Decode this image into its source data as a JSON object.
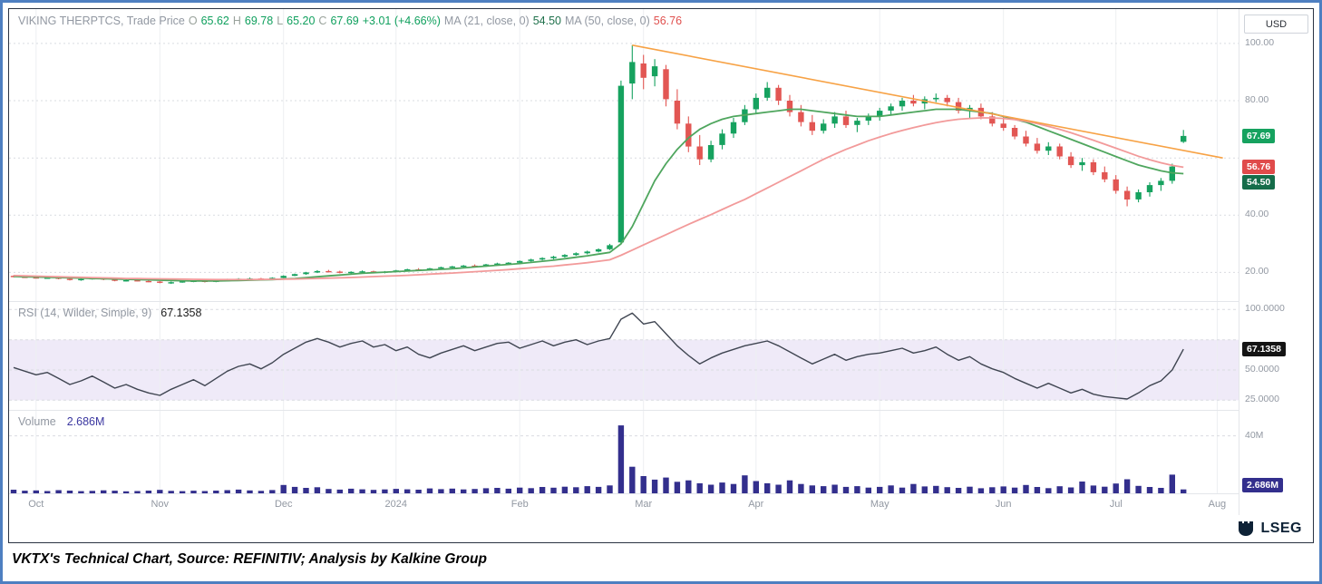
{
  "window": {
    "currency_button": "USD",
    "brand": "LSEG",
    "caption": "VKTX's Technical Chart, Source: REFINITIV; Analysis by Kalkine Group"
  },
  "price_panel": {
    "header": {
      "title": "VIKING THERPTCS, Trade Price",
      "o_label": "O",
      "o_value": "65.62",
      "h_label": "H",
      "h_value": "69.78",
      "l_label": "L",
      "l_value": "65.20",
      "c_label": "C",
      "c_value": "67.69",
      "change": "+3.01 (+4.66%)",
      "ma21_label": "MA (21, close, 0)",
      "ma21_value": "54.50",
      "ma50_label": "MA (50, close, 0)",
      "ma50_value": "56.76"
    }
  },
  "rsi_panel": {
    "label": "RSI (14, Wilder, Simple, 9)",
    "value": "67.1358"
  },
  "volume_panel": {
    "label": "Volume",
    "value": "2.686M"
  },
  "badges": {
    "last_price": "67.69",
    "ma50": "56.76",
    "ma21": "54.50",
    "rsi": "67.1358",
    "volume": "2.686M"
  },
  "colors": {
    "up": "#16a25f",
    "down": "#e25653",
    "ma21": "#4fa65e",
    "ma50": "#f29a9a",
    "trend": "#f7a245",
    "rsi": "#3f4551",
    "volume": "#332f8d",
    "band": "#efeaf8",
    "grid_v": "#edeff2",
    "grid_h": "#d9dce1",
    "sep": "#e4e6ea",
    "badge_price": "#16a25f",
    "badge_ma50": "#e04b4b",
    "badge_ma21": "#156d4a",
    "badge_rsi": "#141414",
    "badge_volume": "#332f8d",
    "frame_blue": "#4e7fc1",
    "lseg_navy": "#0e2236"
  },
  "chart_data": [
    {
      "type": "candlestick",
      "name": "VIKING THERPTCS, Trade Price",
      "x_total_units": 108.5,
      "x_months": [
        {
          "label": "Oct",
          "i": 2
        },
        {
          "label": "Nov",
          "i": 13
        },
        {
          "label": "Dec",
          "i": 24
        },
        {
          "label": "2024",
          "i": 34
        },
        {
          "label": "Feb",
          "i": 45
        },
        {
          "label": "Mar",
          "i": 56
        },
        {
          "label": "Apr",
          "i": 66
        },
        {
          "label": "May",
          "i": 77
        },
        {
          "label": "Jun",
          "i": 88
        },
        {
          "label": "Jul",
          "i": 98
        },
        {
          "label": "Aug",
          "i": 107
        }
      ],
      "ylim": [
        10,
        112
      ],
      "yticks": [
        {
          "v": 100,
          "label": "100.00"
        },
        {
          "v": 80,
          "label": "80.00"
        },
        {
          "v": 60,
          "label": ""
        },
        {
          "v": 40,
          "label": "40.00"
        },
        {
          "v": 20,
          "label": "20.00"
        }
      ],
      "last_close": 67.69,
      "ohlc": [
        [
          18.8,
          19.0,
          18.3,
          18.5
        ],
        [
          18.5,
          18.7,
          18.1,
          18.3
        ],
        [
          18.3,
          18.6,
          17.9,
          18.1
        ],
        [
          18.1,
          18.4,
          17.8,
          18.2
        ],
        [
          18.2,
          18.5,
          17.6,
          17.8
        ],
        [
          17.8,
          18.0,
          17.2,
          17.4
        ],
        [
          17.4,
          17.9,
          17.1,
          17.7
        ],
        [
          17.7,
          18.2,
          17.5,
          18.0
        ],
        [
          18.0,
          18.1,
          17.3,
          17.5
        ],
        [
          17.5,
          17.8,
          16.9,
          17.1
        ],
        [
          17.1,
          17.5,
          16.8,
          17.3
        ],
        [
          17.3,
          17.6,
          16.9,
          17.0
        ],
        [
          17.0,
          17.4,
          16.6,
          16.8
        ],
        [
          16.8,
          17.0,
          16.2,
          16.4
        ],
        [
          16.4,
          16.8,
          16.0,
          16.6
        ],
        [
          16.6,
          17.1,
          16.4,
          16.9
        ],
        [
          16.9,
          17.3,
          16.6,
          17.1
        ],
        [
          17.1,
          17.2,
          16.5,
          16.7
        ],
        [
          16.7,
          17.4,
          16.6,
          17.2
        ],
        [
          17.2,
          17.8,
          17.0,
          17.6
        ],
        [
          17.6,
          18.0,
          17.3,
          17.8
        ],
        [
          17.8,
          18.2,
          17.5,
          17.9
        ],
        [
          17.9,
          18.1,
          17.4,
          17.6
        ],
        [
          17.6,
          18.3,
          17.5,
          18.1
        ],
        [
          18.1,
          19.0,
          18.0,
          18.8
        ],
        [
          18.8,
          19.6,
          18.7,
          19.4
        ],
        [
          19.4,
          20.2,
          19.2,
          20.0
        ],
        [
          20.0,
          20.8,
          19.8,
          20.5
        ],
        [
          20.5,
          20.9,
          20.0,
          20.3
        ],
        [
          20.3,
          20.6,
          19.7,
          19.9
        ],
        [
          19.9,
          20.4,
          19.6,
          20.2
        ],
        [
          20.2,
          20.7,
          19.9,
          20.4
        ],
        [
          20.4,
          20.6,
          19.8,
          20.0
        ],
        [
          20.0,
          20.5,
          19.7,
          20.3
        ],
        [
          20.3,
          20.9,
          20.1,
          20.7
        ],
        [
          20.7,
          21.3,
          20.4,
          21.1
        ],
        [
          21.1,
          21.5,
          20.6,
          20.9
        ],
        [
          20.9,
          21.6,
          20.7,
          21.4
        ],
        [
          21.4,
          22.0,
          21.1,
          21.8
        ],
        [
          21.8,
          22.3,
          21.4,
          22.1
        ],
        [
          22.1,
          22.6,
          21.7,
          22.4
        ],
        [
          22.4,
          22.8,
          21.9,
          22.2
        ],
        [
          22.2,
          23.0,
          22.0,
          22.8
        ],
        [
          22.8,
          23.4,
          22.5,
          23.1
        ],
        [
          23.1,
          23.6,
          22.7,
          23.4
        ],
        [
          23.4,
          24.2,
          23.2,
          24.0
        ],
        [
          24.0,
          24.8,
          23.7,
          24.5
        ],
        [
          24.5,
          25.3,
          24.2,
          25.0
        ],
        [
          25.0,
          25.8,
          24.6,
          25.5
        ],
        [
          25.5,
          26.4,
          25.2,
          26.1
        ],
        [
          26.1,
          27.0,
          25.8,
          26.7
        ],
        [
          26.7,
          27.6,
          26.3,
          27.3
        ],
        [
          27.3,
          28.4,
          27.0,
          28.1
        ],
        [
          28.1,
          30.0,
          27.8,
          29.5
        ],
        [
          30.5,
          87.0,
          30.2,
          85.2
        ],
        [
          86.0,
          99.4,
          80.5,
          93.5
        ],
        [
          93.0,
          96.0,
          84.0,
          88.0
        ],
        [
          88.5,
          94.5,
          85.0,
          92.0
        ],
        [
          91.0,
          92.5,
          78.0,
          80.5
        ],
        [
          80.0,
          84.0,
          70.0,
          72.0
        ],
        [
          72.0,
          74.5,
          62.0,
          64.0
        ],
        [
          64.0,
          68.0,
          57.5,
          59.5
        ],
        [
          59.5,
          66.0,
          58.5,
          64.5
        ],
        [
          64.5,
          70.0,
          63.0,
          68.5
        ],
        [
          68.5,
          74.0,
          67.0,
          72.5
        ],
        [
          72.5,
          78.5,
          71.5,
          77.0
        ],
        [
          77.0,
          82.5,
          75.5,
          81.0
        ],
        [
          81.0,
          86.5,
          80.0,
          84.5
        ],
        [
          84.5,
          85.5,
          78.5,
          80.0
        ],
        [
          80.0,
          82.0,
          74.5,
          76.0
        ],
        [
          76.0,
          78.5,
          71.0,
          72.5
        ],
        [
          72.5,
          75.0,
          68.0,
          69.5
        ],
        [
          69.5,
          73.5,
          68.5,
          72.0
        ],
        [
          72.0,
          76.0,
          70.5,
          74.5
        ],
        [
          74.5,
          76.5,
          70.5,
          71.5
        ],
        [
          71.5,
          74.0,
          69.0,
          73.0
        ],
        [
          73.0,
          75.5,
          71.5,
          74.5
        ],
        [
          74.5,
          77.5,
          73.0,
          76.5
        ],
        [
          76.5,
          79.0,
          75.0,
          78.0
        ],
        [
          78.0,
          81.0,
          76.5,
          80.0
        ],
        [
          80.0,
          82.0,
          78.0,
          79.0
        ],
        [
          79.0,
          81.5,
          77.0,
          80.5
        ],
        [
          80.5,
          82.5,
          79.5,
          81.0
        ],
        [
          81.0,
          82.0,
          78.0,
          79.5
        ],
        [
          79.5,
          81.0,
          75.5,
          76.5
        ],
        [
          76.5,
          78.5,
          74.0,
          77.5
        ],
        [
          77.5,
          79.0,
          73.5,
          74.5
        ],
        [
          74.5,
          76.0,
          71.0,
          72.0
        ],
        [
          72.0,
          74.5,
          69.5,
          70.5
        ],
        [
          70.5,
          71.5,
          66.5,
          67.5
        ],
        [
          67.5,
          69.5,
          64.0,
          65.0
        ],
        [
          65.0,
          67.0,
          61.5,
          62.5
        ],
        [
          62.5,
          65.5,
          61.0,
          64.0
        ],
        [
          64.0,
          65.0,
          59.5,
          60.5
        ],
        [
          60.5,
          62.0,
          56.5,
          57.5
        ],
        [
          57.5,
          60.0,
          55.5,
          58.5
        ],
        [
          58.5,
          59.5,
          54.0,
          55.0
        ],
        [
          55.0,
          57.0,
          51.5,
          52.5
        ],
        [
          52.5,
          54.0,
          47.5,
          48.5
        ],
        [
          48.5,
          50.0,
          43.1,
          45.5
        ],
        [
          45.5,
          49.0,
          44.5,
          48.0
        ],
        [
          48.0,
          51.5,
          46.5,
          50.5
        ],
        [
          50.5,
          53.0,
          48.5,
          52.0
        ],
        [
          52.0,
          58.0,
          51.0,
          57.0
        ],
        [
          65.62,
          69.78,
          65.2,
          67.69
        ]
      ],
      "series": [
        {
          "name": "MA (21, close, 0)",
          "last": 54.5,
          "values": [
            18.6,
            18.5,
            18.4,
            18.3,
            18.2,
            18.1,
            18.0,
            17.9,
            17.8,
            17.7,
            17.6,
            17.5,
            17.4,
            17.3,
            17.2,
            17.1,
            17.0,
            17.0,
            17.0,
            17.1,
            17.2,
            17.3,
            17.4,
            17.5,
            17.7,
            17.9,
            18.2,
            18.5,
            18.8,
            19.1,
            19.4,
            19.7,
            19.9,
            20.1,
            20.3,
            20.5,
            20.7,
            20.9,
            21.1,
            21.3,
            21.6,
            21.9,
            22.2,
            22.5,
            22.8,
            23.1,
            23.5,
            23.9,
            24.3,
            24.8,
            25.3,
            25.8,
            26.4,
            27.0,
            30.0,
            36.0,
            44.0,
            52.0,
            58.0,
            63.0,
            67.0,
            70.0,
            72.0,
            73.5,
            74.5,
            75.0,
            75.5,
            76.0,
            76.5,
            77.0,
            77.0,
            76.5,
            76.0,
            75.5,
            75.0,
            74.5,
            74.5,
            74.5,
            75.0,
            75.5,
            76.0,
            76.5,
            77.0,
            77.0,
            77.0,
            76.5,
            76.0,
            75.5,
            74.5,
            73.5,
            72.5,
            71.0,
            69.5,
            68.0,
            66.5,
            65.0,
            63.5,
            62.0,
            60.5,
            59.0,
            57.5,
            56.5,
            55.5,
            54.8,
            54.5
          ]
        },
        {
          "name": "MA (50, close, 0)",
          "last": 56.76,
          "values": [
            18.9,
            18.8,
            18.7,
            18.6,
            18.5,
            18.4,
            18.3,
            18.2,
            18.1,
            18.0,
            17.9,
            17.85,
            17.8,
            17.75,
            17.7,
            17.65,
            17.6,
            17.55,
            17.5,
            17.5,
            17.5,
            17.5,
            17.55,
            17.6,
            17.65,
            17.7,
            17.8,
            17.9,
            18.0,
            18.1,
            18.25,
            18.4,
            18.55,
            18.7,
            18.85,
            19.0,
            19.2,
            19.4,
            19.6,
            19.8,
            20.0,
            20.25,
            20.5,
            20.75,
            21.0,
            21.3,
            21.6,
            21.9,
            22.2,
            22.6,
            23.0,
            23.4,
            23.9,
            24.4,
            26.0,
            27.8,
            29.6,
            31.4,
            33.2,
            35.0,
            36.8,
            38.5,
            40.2,
            42.0,
            43.8,
            45.5,
            47.5,
            49.5,
            51.5,
            53.5,
            55.5,
            57.5,
            59.5,
            61.3,
            63.0,
            64.5,
            66.0,
            67.3,
            68.5,
            69.6,
            70.6,
            71.5,
            72.3,
            73.0,
            73.5,
            73.8,
            74.0,
            74.0,
            73.8,
            73.4,
            72.8,
            72.0,
            71.0,
            70.0,
            68.8,
            67.5,
            66.2,
            64.8,
            63.4,
            62.0,
            60.6,
            59.4,
            58.3,
            57.4,
            56.76
          ]
        }
      ],
      "trendline": {
        "from": {
          "i": 55,
          "price": 99.4
        },
        "to": {
          "i": 107.5,
          "price": 60.0
        }
      }
    },
    {
      "type": "line",
      "name": "RSI (14, Wilder, Simple, 9)",
      "ylim": [
        17,
        107
      ],
      "yticks": [
        {
          "v": 100,
          "label": "100.0000"
        },
        {
          "v": 75,
          "label": ""
        },
        {
          "v": 50,
          "label": "50.0000"
        },
        {
          "v": 25,
          "label": "25.0000"
        }
      ],
      "band": [
        25,
        75
      ],
      "last": 67.1358,
      "values": [
        52,
        49,
        46,
        48,
        43,
        38,
        41,
        45,
        40,
        35,
        38,
        34,
        31,
        29,
        34,
        38,
        42,
        37,
        43,
        49,
        53,
        55,
        51,
        56,
        63,
        68,
        73,
        76,
        73,
        69,
        72,
        74,
        69,
        71,
        66,
        69,
        63,
        60,
        64,
        67,
        70,
        66,
        69,
        72,
        73,
        68,
        71,
        74,
        70,
        73,
        75,
        71,
        74,
        76,
        92,
        97,
        88,
        90,
        80,
        70,
        62,
        55,
        60,
        64,
        67,
        70,
        72,
        74,
        70,
        65,
        60,
        55,
        59,
        63,
        58,
        61,
        63,
        64,
        66,
        68,
        64,
        66,
        69,
        63,
        58,
        61,
        55,
        51,
        48,
        43,
        39,
        35,
        39,
        35,
        31,
        34,
        30,
        28,
        27,
        26,
        31,
        37,
        41,
        50,
        67.14
      ]
    },
    {
      "type": "bar",
      "name": "Volume",
      "unit": "M",
      "ylim": [
        0,
        58
      ],
      "yticks": [
        {
          "v": 40,
          "label": "40M"
        }
      ],
      "last": 2.686,
      "values": [
        2.5,
        1.8,
        2.0,
        1.6,
        2.2,
        1.9,
        1.5,
        1.7,
        2.1,
        1.8,
        1.4,
        1.6,
        1.9,
        2.4,
        1.7,
        1.5,
        1.8,
        1.6,
        1.9,
        2.2,
        2.6,
        2.0,
        1.7,
        2.3,
        5.8,
        4.5,
        3.8,
        4.2,
        3.0,
        2.6,
        3.2,
        2.8,
        2.4,
        2.7,
        3.1,
        2.8,
        2.5,
        3.4,
        2.9,
        3.3,
        2.7,
        3.0,
        3.5,
        3.8,
        3.2,
        4.0,
        3.6,
        4.4,
        3.9,
        4.6,
        4.2,
        5.0,
        4.5,
        5.5,
        47.2,
        18.5,
        12.0,
        9.5,
        11.0,
        8.0,
        9.0,
        7.0,
        6.0,
        7.5,
        6.5,
        12.5,
        8.5,
        7.0,
        6.0,
        9.0,
        6.5,
        5.5,
        5.0,
        6.0,
        4.5,
        5.0,
        4.0,
        4.5,
        5.5,
        4.0,
        6.5,
        4.8,
        5.2,
        4.3,
        3.8,
        4.6,
        3.5,
        4.2,
        4.8,
        4.0,
        5.8,
        4.4,
        3.6,
        4.9,
        4.1,
        8.2,
        5.4,
        4.6,
        6.8,
        9.8,
        5.2,
        4.4,
        3.8,
        13.0,
        2.686
      ]
    }
  ]
}
